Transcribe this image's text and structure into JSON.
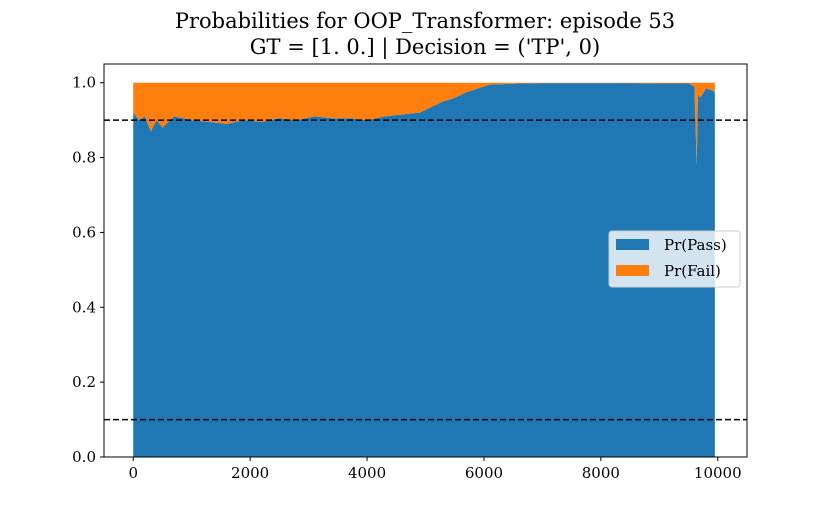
{
  "chart_data": {
    "type": "area",
    "stacked": true,
    "title": "Probabilities for OOP_Transformer: episode 53",
    "subtitle": "GT = [1. 0.] | Decision = ('TP', 0)",
    "xlabel": "",
    "ylabel": "",
    "xlim": [
      -500,
      10500
    ],
    "ylim": [
      0.0,
      1.05
    ],
    "xticks": [
      "0",
      "2000",
      "4000",
      "6000",
      "8000",
      "10000"
    ],
    "yticks": [
      "0.0",
      "0.2",
      "0.4",
      "0.6",
      "0.8",
      "1.0"
    ],
    "xtick_values": [
      0,
      2000,
      4000,
      6000,
      8000,
      10000
    ],
    "ytick_values": [
      0.0,
      0.2,
      0.4,
      0.6,
      0.8,
      1.0
    ],
    "thresholds": [
      0.9,
      0.1
    ],
    "threshold_style": "dashed",
    "grid": false,
    "legend_position": "center-right",
    "x": [
      0,
      100,
      200,
      300,
      400,
      500,
      700,
      1000,
      1300,
      1600,
      1900,
      2200,
      2500,
      2800,
      3100,
      3400,
      3700,
      4000,
      4300,
      4600,
      4900,
      5100,
      5300,
      5500,
      5700,
      5900,
      6000,
      6100,
      6300,
      6600,
      7000,
      7500,
      8000,
      8500,
      9000,
      9500,
      9600,
      9640,
      9660,
      9700,
      9800,
      9900,
      9950
    ],
    "series": [
      {
        "name": "Pr(Pass)",
        "color": "#1f77b4",
        "values": [
          0.92,
          0.9,
          0.91,
          0.87,
          0.9,
          0.88,
          0.91,
          0.9,
          0.895,
          0.89,
          0.9,
          0.895,
          0.905,
          0.9,
          0.91,
          0.905,
          0.905,
          0.9,
          0.91,
          0.915,
          0.92,
          0.935,
          0.95,
          0.96,
          0.975,
          0.985,
          0.99,
          0.995,
          0.996,
          0.998,
          0.999,
          0.999,
          0.999,
          0.999,
          0.998,
          0.998,
          0.99,
          0.78,
          0.97,
          0.96,
          0.985,
          0.98,
          0.975
        ]
      },
      {
        "name": "Pr(Fail)",
        "color": "#ff7f0e",
        "values": [
          0.08,
          0.1,
          0.09,
          0.13,
          0.1,
          0.12,
          0.09,
          0.1,
          0.105,
          0.11,
          0.1,
          0.105,
          0.095,
          0.1,
          0.09,
          0.095,
          0.095,
          0.1,
          0.09,
          0.085,
          0.08,
          0.065,
          0.05,
          0.04,
          0.025,
          0.015,
          0.01,
          0.005,
          0.004,
          0.002,
          0.001,
          0.001,
          0.001,
          0.001,
          0.002,
          0.002,
          0.01,
          0.22,
          0.03,
          0.04,
          0.015,
          0.02,
          0.025
        ]
      }
    ]
  }
}
